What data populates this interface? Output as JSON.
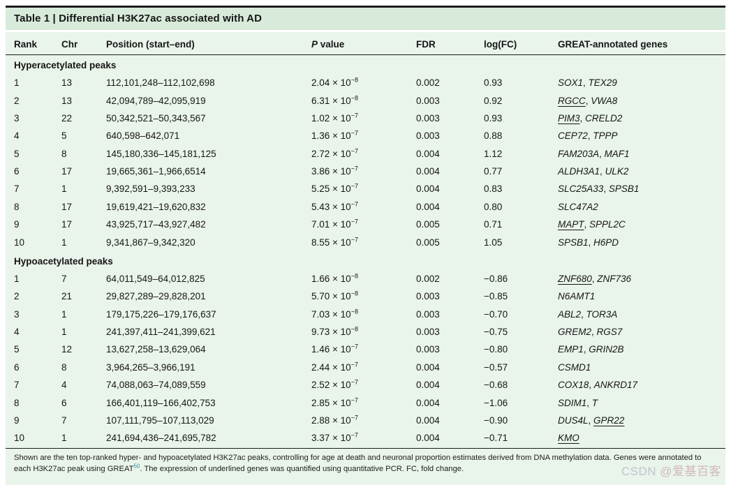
{
  "title": "Table 1 | Differential H3K27ac associated with AD",
  "columns": [
    {
      "label": "Rank"
    },
    {
      "label": "Chr"
    },
    {
      "label": "Position (start–end)"
    },
    {
      "italic": "P",
      "rest": " value"
    },
    {
      "label": "FDR"
    },
    {
      "label": "log(FC)"
    },
    {
      "label": "GREAT-annotated genes"
    }
  ],
  "sections": [
    {
      "label": "Hyperacetylated peaks",
      "rows": [
        {
          "rank": "1",
          "chr": "13",
          "position": "112,101,248–112,102,698",
          "p": {
            "coef": "2.04",
            "exp": "−8"
          },
          "fdr": "0.002",
          "logfc": "0.93",
          "genes": [
            {
              "name": "SOX1",
              "underline": false
            },
            {
              "name": "TEX29",
              "underline": false
            }
          ]
        },
        {
          "rank": "2",
          "chr": "13",
          "position": "42,094,789–42,095,919",
          "p": {
            "coef": "6.31",
            "exp": "−8"
          },
          "fdr": "0.003",
          "logfc": "0.92",
          "genes": [
            {
              "name": "RGCC",
              "underline": true
            },
            {
              "name": "VWA8",
              "underline": false
            }
          ]
        },
        {
          "rank": "3",
          "chr": "22",
          "position": "50,342,521–50,343,567",
          "p": {
            "coef": "1.02",
            "exp": "−7"
          },
          "fdr": "0.003",
          "logfc": "0.93",
          "genes": [
            {
              "name": "PIM3",
              "underline": true
            },
            {
              "name": "CRELD2",
              "underline": false
            }
          ]
        },
        {
          "rank": "4",
          "chr": "5",
          "position": "640,598–642,071",
          "p": {
            "coef": "1.36",
            "exp": "−7"
          },
          "fdr": "0.003",
          "logfc": "0.88",
          "genes": [
            {
              "name": "CEP72",
              "underline": false
            },
            {
              "name": "TPPP",
              "underline": false
            }
          ]
        },
        {
          "rank": "5",
          "chr": "8",
          "position": "145,180,336–145,181,125",
          "p": {
            "coef": "2.72",
            "exp": "−7"
          },
          "fdr": "0.004",
          "logfc": "1.12",
          "genes": [
            {
              "name": "FAM203A",
              "underline": false
            },
            {
              "name": "MAF1",
              "underline": false
            }
          ]
        },
        {
          "rank": "6",
          "chr": "17",
          "position": "19,665,361–1,966,6514",
          "p": {
            "coef": "3.86",
            "exp": "−7"
          },
          "fdr": "0.004",
          "logfc": "0.77",
          "genes": [
            {
              "name": "ALDH3A1",
              "underline": false
            },
            {
              "name": "ULK2",
              "underline": false
            }
          ]
        },
        {
          "rank": "7",
          "chr": "1",
          "position": "9,392,591–9,393,233",
          "p": {
            "coef": "5.25",
            "exp": "−7"
          },
          "fdr": "0.004",
          "logfc": "0.83",
          "genes": [
            {
              "name": "SLC25A33",
              "underline": false
            },
            {
              "name": "SPSB1",
              "underline": false
            }
          ]
        },
        {
          "rank": "8",
          "chr": "17",
          "position": "19,619,421–19,620,832",
          "p": {
            "coef": "5.43",
            "exp": "−7"
          },
          "fdr": "0.004",
          "logfc": "0.80",
          "genes": [
            {
              "name": "SLC47A2",
              "underline": false
            }
          ]
        },
        {
          "rank": "9",
          "chr": "17",
          "position": "43,925,717–43,927,482",
          "p": {
            "coef": "7.01",
            "exp": "−7"
          },
          "fdr": "0.005",
          "logfc": "0.71",
          "genes": [
            {
              "name": "MAPT",
              "underline": true
            },
            {
              "name": "SPPL2C",
              "underline": false
            }
          ]
        },
        {
          "rank": "10",
          "chr": "1",
          "position": "9,341,867–9,342,320",
          "p": {
            "coef": "8.55",
            "exp": "−7"
          },
          "fdr": "0.005",
          "logfc": "1.05",
          "genes": [
            {
              "name": "SPSB1",
              "underline": false
            },
            {
              "name": "H6PD",
              "underline": false
            }
          ]
        }
      ]
    },
    {
      "label": "Hypoacetylated peaks",
      "rows": [
        {
          "rank": "1",
          "chr": "7",
          "position": "64,011,549–64,012,825",
          "p": {
            "coef": "1.66",
            "exp": "−8"
          },
          "fdr": "0.002",
          "logfc": "−0.86",
          "genes": [
            {
              "name": "ZNF680",
              "underline": true
            },
            {
              "name": "ZNF736",
              "underline": false
            }
          ]
        },
        {
          "rank": "2",
          "chr": "21",
          "position": "29,827,289–29,828,201",
          "p": {
            "coef": "5.70",
            "exp": "−8"
          },
          "fdr": "0.003",
          "logfc": "−0.85",
          "genes": [
            {
              "name": "N6AMT1",
              "underline": false
            }
          ]
        },
        {
          "rank": "3",
          "chr": "1",
          "position": "179,175,226–179,176,637",
          "p": {
            "coef": "7.03",
            "exp": "−8"
          },
          "fdr": "0.003",
          "logfc": "−0.70",
          "genes": [
            {
              "name": "ABL2",
              "underline": false
            },
            {
              "name": "TOR3A",
              "underline": false
            }
          ]
        },
        {
          "rank": "4",
          "chr": "1",
          "position": "241,397,411–241,399,621",
          "p": {
            "coef": "9.73",
            "exp": "−8"
          },
          "fdr": "0.003",
          "logfc": "−0.75",
          "genes": [
            {
              "name": "GREM2",
              "underline": false
            },
            {
              "name": "RGS7",
              "underline": false
            }
          ]
        },
        {
          "rank": "5",
          "chr": "12",
          "position": "13,627,258–13,629,064",
          "p": {
            "coef": "1.46",
            "exp": "−7"
          },
          "fdr": "0.003",
          "logfc": "−0.80",
          "genes": [
            {
              "name": "EMP1",
              "underline": false
            },
            {
              "name": "GRIN2B",
              "underline": false
            }
          ]
        },
        {
          "rank": "6",
          "chr": "8",
          "position": "3,964,265–3,966,191",
          "p": {
            "coef": "2.44",
            "exp": "−7"
          },
          "fdr": "0.004",
          "logfc": "−0.57",
          "genes": [
            {
              "name": "CSMD1",
              "underline": false
            }
          ]
        },
        {
          "rank": "7",
          "chr": "4",
          "position": "74,088,063–74,089,559",
          "p": {
            "coef": "2.52",
            "exp": "−7"
          },
          "fdr": "0.004",
          "logfc": "−0.68",
          "genes": [
            {
              "name": "COX18",
              "underline": false
            },
            {
              "name": "ANKRD17",
              "underline": false
            }
          ]
        },
        {
          "rank": "8",
          "chr": "6",
          "position": "166,401,119–166,402,753",
          "p": {
            "coef": "2.85",
            "exp": "−7"
          },
          "fdr": "0.004",
          "logfc": "−1.06",
          "genes": [
            {
              "name": "SDIM1",
              "underline": false
            },
            {
              "name": "T",
              "underline": false
            }
          ]
        },
        {
          "rank": "9",
          "chr": "7",
          "position": "107,111,795–107,113,029",
          "p": {
            "coef": "2.88",
            "exp": "−7"
          },
          "fdr": "0.004",
          "logfc": "−0.90",
          "genes": [
            {
              "name": "DUS4L",
              "underline": false
            },
            {
              "name": "GPR22",
              "underline": true
            }
          ]
        },
        {
          "rank": "10",
          "chr": "1",
          "position": "241,694,436–241,695,782",
          "p": {
            "coef": "3.37",
            "exp": "−7"
          },
          "fdr": "0.004",
          "logfc": "−0.71",
          "genes": [
            {
              "name": "KMO",
              "underline": true
            }
          ]
        }
      ]
    }
  ],
  "footnote": {
    "part1": "Shown are the ten top-ranked hyper- and hypoacetylated H3K27ac peaks, controlling for age at death and neuronal proportion estimates derived from DNA methylation data. Genes were annotated to each H3K27ac peak using GREAT",
    "ref": "50",
    "part2": ". The expression of underlined genes was quantified using quantitative PCR. FC, fold change."
  },
  "watermark": {
    "prefix": "CSDN ",
    "handle": "@爱基百客"
  },
  "colors": {
    "title_band": "#d8ebda",
    "body_bg": "#e9f4ea",
    "rule": "#1c1c1c",
    "text": "#161616",
    "ref_sup": "#2e8b8b",
    "wm_gray": "#c3c3cf",
    "wm_pink": "#d2b7bc"
  }
}
